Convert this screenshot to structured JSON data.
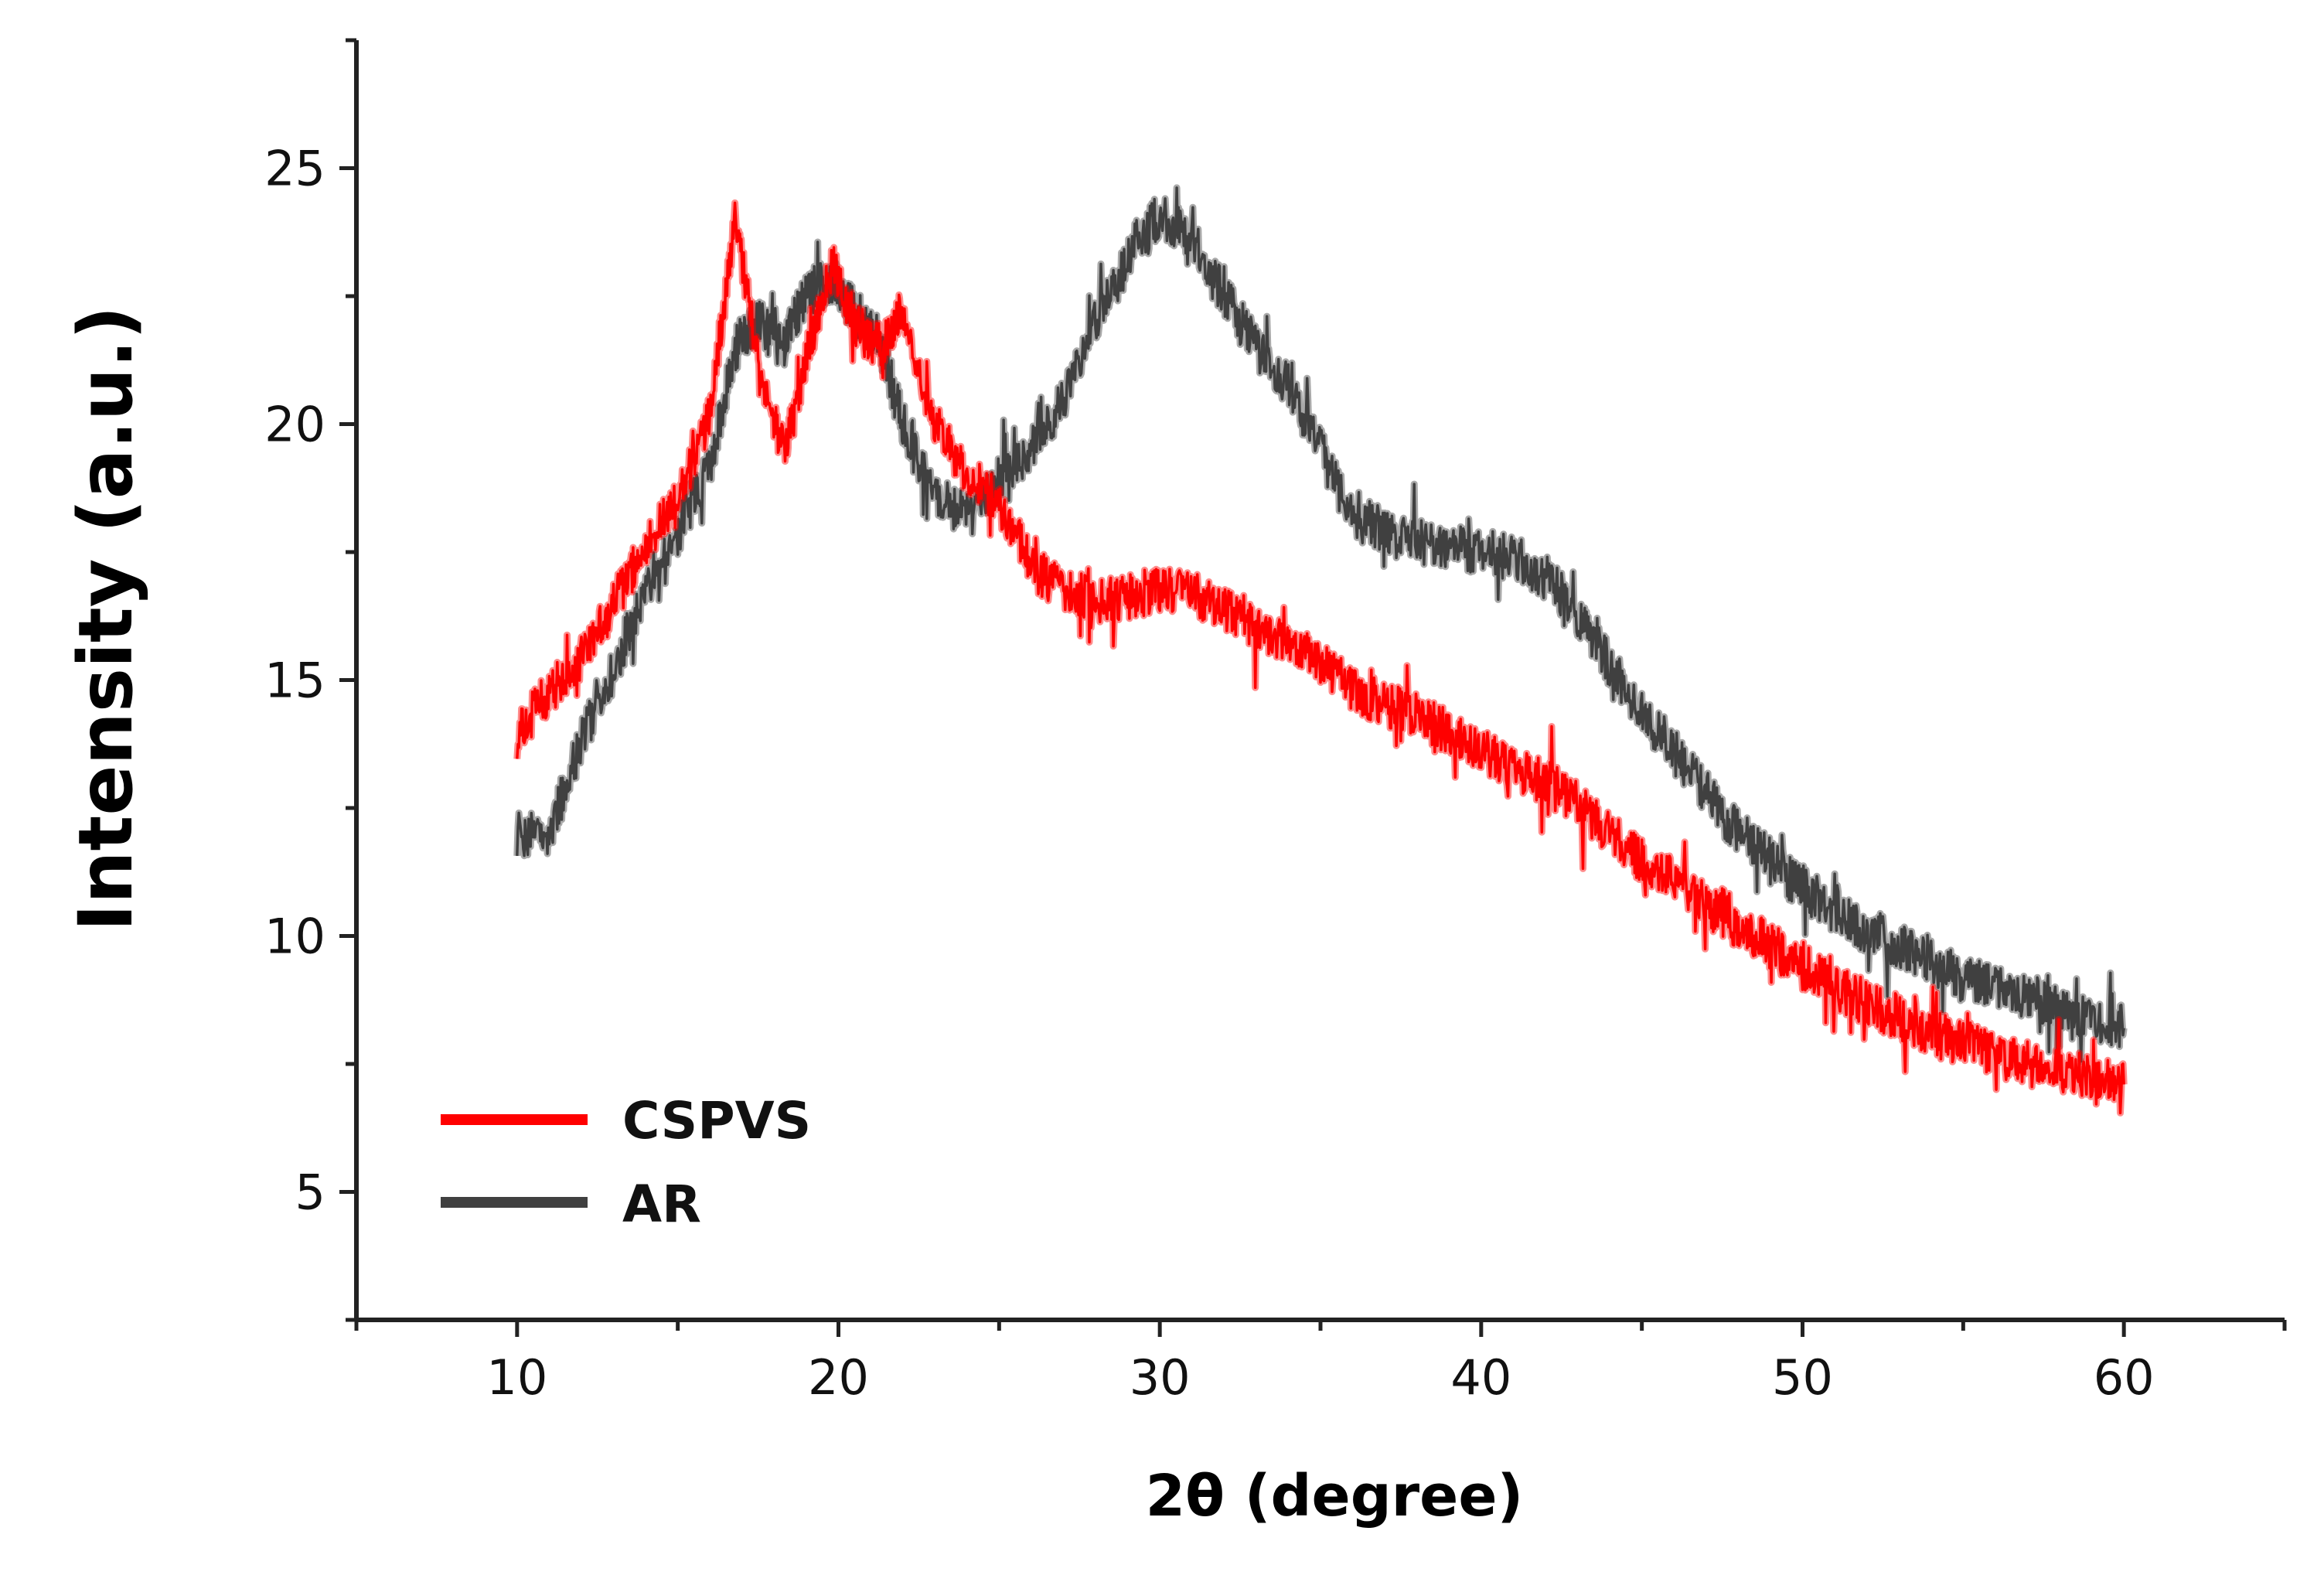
{
  "chart_data": {
    "type": "line",
    "title": "",
    "xlabel": "2θ (degree)",
    "ylabel": "Intensity (a.u.)",
    "xlim": [
      5,
      65
    ],
    "ylim": [
      2.5,
      27.5
    ],
    "xticks": [
      10,
      20,
      30,
      40,
      50,
      60
    ],
    "yticks": [
      5,
      10,
      15,
      20,
      25
    ],
    "grid": false,
    "legend_position": "bottom-left",
    "x": [
      10,
      11,
      12,
      13,
      14,
      15,
      16,
      16.8,
      17.5,
      18.3,
      19,
      19.8,
      20.5,
      21.3,
      22,
      23,
      24,
      25,
      26,
      27,
      28,
      29,
      30,
      31,
      32,
      33,
      34,
      35,
      36,
      37,
      38,
      39,
      40,
      41,
      42,
      43,
      44,
      45,
      46,
      47,
      48,
      49,
      50,
      51,
      52,
      53,
      54,
      55,
      56,
      57,
      58,
      59,
      60
    ],
    "series": [
      {
        "name": "CSPVS",
        "color": "#ff0000",
        "values": [
          13.9,
          14.8,
          15.4,
          16.5,
          17.6,
          18.5,
          20.2,
          24.0,
          21.2,
          19.5,
          21.2,
          23.1,
          22.0,
          21.5,
          22.2,
          20.0,
          19.0,
          18.5,
          17.2,
          16.8,
          16.5,
          16.6,
          16.8,
          16.7,
          16.4,
          16.0,
          15.8,
          15.3,
          14.8,
          14.5,
          14.3,
          14.0,
          13.6,
          13.3,
          13.0,
          12.6,
          12.0,
          11.5,
          11.1,
          10.6,
          10.2,
          9.8,
          9.4,
          9.0,
          8.7,
          8.4,
          8.1,
          7.9,
          7.7,
          7.5,
          7.4,
          7.2,
          7.1
        ]
      },
      {
        "name": "AR",
        "color": "#404040",
        "values": [
          12.0,
          12.0,
          13.8,
          15.2,
          16.8,
          17.9,
          19.2,
          21.5,
          22.0,
          21.5,
          22.6,
          22.8,
          22.2,
          21.6,
          20.0,
          18.5,
          18.2,
          18.8,
          19.5,
          20.5,
          22.0,
          23.2,
          24.1,
          23.6,
          22.5,
          21.5,
          20.8,
          19.5,
          18.2,
          17.9,
          17.7,
          17.6,
          17.5,
          17.4,
          17.0,
          16.3,
          15.3,
          14.4,
          13.6,
          12.8,
          12.0,
          11.5,
          10.9,
          10.5,
          10.1,
          9.8,
          9.5,
          9.2,
          9.0,
          8.8,
          8.6,
          8.4,
          8.2
        ]
      }
    ]
  }
}
